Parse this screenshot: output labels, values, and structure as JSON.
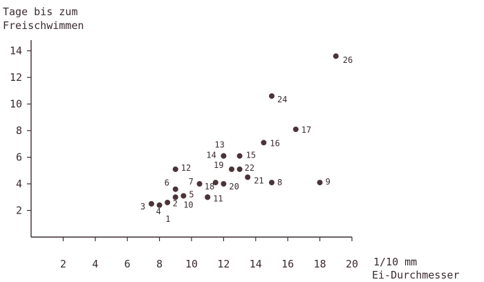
{
  "chart_data": {
    "type": "scatter",
    "ylabel_lines": [
      "Tage bis zum",
      "Freischwimmen"
    ],
    "xlabel_unit": "1/10 mm",
    "xlabel": "Ei-Durchmesser",
    "xlim": [
      0,
      20
    ],
    "ylim": [
      0,
      15
    ],
    "xticks": [
      2,
      4,
      6,
      8,
      10,
      12,
      14,
      16,
      18,
      20
    ],
    "yticks": [
      2,
      4,
      6,
      8,
      10,
      12,
      14
    ],
    "grid": false,
    "marker_color": "#4a3437",
    "points": [
      {
        "x": 7.5,
        "y": 2.5,
        "label": "3"
      },
      {
        "x": 8.0,
        "y": 2.4,
        "label": "4"
      },
      {
        "x": 8.5,
        "y": 2.6,
        "label": "1"
      },
      {
        "x": 9.0,
        "y": 3.0,
        "label": "2"
      },
      {
        "x": 9.5,
        "y": 3.1,
        "label": "5"
      },
      {
        "x": 9.0,
        "y": 3.6,
        "label": "6"
      },
      {
        "x": 9.0,
        "y": 5.1,
        "label": "12"
      },
      {
        "x": 10.5,
        "y": 4.0,
        "label": "7"
      },
      {
        "x": 11.0,
        "y": 3.0,
        "label": "10"
      },
      {
        "x": 11.0,
        "y": 3.0,
        "label": "11"
      },
      {
        "x": 11.5,
        "y": 4.1,
        "label": "18"
      },
      {
        "x": 12.0,
        "y": 4.0,
        "label": "20"
      },
      {
        "x": 12.0,
        "y": 6.1,
        "label": "14"
      },
      {
        "x": 12.0,
        "y": 6.1,
        "label": "13"
      },
      {
        "x": 12.5,
        "y": 5.1,
        "label": "19"
      },
      {
        "x": 13.0,
        "y": 5.1,
        "label": "22"
      },
      {
        "x": 13.0,
        "y": 6.1,
        "label": "15"
      },
      {
        "x": 13.5,
        "y": 4.5,
        "label": "21"
      },
      {
        "x": 15.0,
        "y": 4.1,
        "label": "8"
      },
      {
        "x": 14.5,
        "y": 7.1,
        "label": "16"
      },
      {
        "x": 15.0,
        "y": 10.6,
        "label": "24"
      },
      {
        "x": 16.5,
        "y": 8.1,
        "label": "17"
      },
      {
        "x": 18.0,
        "y": 4.1,
        "label": "9"
      },
      {
        "x": 19.0,
        "y": 13.6,
        "label": "26"
      }
    ]
  }
}
